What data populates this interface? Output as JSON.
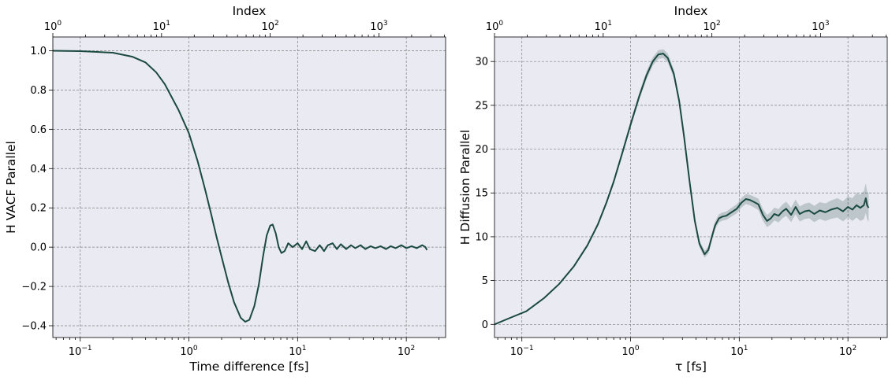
{
  "chart_data": [
    {
      "type": "line",
      "xscale": "log",
      "xlim": [
        0.056,
        230
      ],
      "ylim": [
        -0.46,
        1.07
      ],
      "xlabel": "Time difference [fs]",
      "ylabel": "H VACF Parallel",
      "top_xlabel": "Index",
      "top_xlim": [
        1,
        4107
      ],
      "grid": true,
      "x_ticks": [
        0.1,
        1,
        10,
        100
      ],
      "x_tick_labels": [
        [
          "10",
          "−1"
        ],
        [
          "10",
          "0"
        ],
        [
          "10",
          "1"
        ],
        [
          "10",
          "2"
        ]
      ],
      "top_ticks": [
        1,
        10,
        100,
        1000
      ],
      "top_tick_labels": [
        [
          "10",
          "0"
        ],
        [
          "10",
          "1"
        ],
        [
          "10",
          "2"
        ],
        [
          "10",
          "3"
        ]
      ],
      "y_ticks": [
        -0.4,
        -0.2,
        0.0,
        0.2,
        0.4,
        0.6,
        0.8,
        1.0
      ],
      "y_tick_labels": [
        "−0.4",
        "−0.2",
        "0.0",
        "0.2",
        "0.4",
        "0.6",
        "0.8",
        "1.0"
      ],
      "series": [
        {
          "x": [
            0.056,
            0.1,
            0.2,
            0.3,
            0.4,
            0.5,
            0.6,
            0.7,
            0.8,
            1.0,
            1.2,
            1.4,
            1.6,
            1.8,
            2.0,
            2.3,
            2.6,
            3.0,
            3.3,
            3.6,
            4.0,
            4.4,
            4.8,
            5.2,
            5.6,
            5.9,
            6.3,
            6.7,
            7.1,
            7.6,
            8.2,
            9.0,
            10.0,
            11.0,
            12.0,
            13.0,
            14.5,
            16.0,
            17.5,
            19.0,
            21.0,
            23.0,
            25.0,
            28.0,
            31.0,
            34.0,
            38.0,
            42.0,
            47.0,
            52.0,
            58.0,
            65.0,
            72.0,
            80.0,
            90.0,
            100.0,
            112.0,
            125.0,
            140.0,
            150.0,
            155.0
          ],
          "y": [
            1.0,
            0.998,
            0.99,
            0.97,
            0.94,
            0.89,
            0.83,
            0.76,
            0.7,
            0.58,
            0.44,
            0.3,
            0.17,
            0.05,
            -0.05,
            -0.18,
            -0.28,
            -0.36,
            -0.38,
            -0.37,
            -0.3,
            -0.19,
            -0.05,
            0.06,
            0.11,
            0.115,
            0.07,
            0.0,
            -0.03,
            -0.02,
            0.02,
            0.0,
            0.02,
            -0.01,
            0.03,
            -0.01,
            -0.02,
            0.01,
            -0.02,
            0.01,
            0.02,
            -0.01,
            0.015,
            -0.01,
            0.01,
            -0.005,
            0.01,
            -0.01,
            0.005,
            -0.005,
            0.005,
            -0.01,
            0.005,
            -0.005,
            0.01,
            -0.005,
            0.005,
            -0.005,
            0.01,
            0.0,
            -0.015
          ]
        }
      ]
    },
    {
      "type": "line",
      "xscale": "log",
      "xlim": [
        0.056,
        230
      ],
      "ylim": [
        -1.5,
        32.8
      ],
      "xlabel": "τ [fs]",
      "ylabel": "H Diffusion Parallel",
      "top_xlabel": "Index",
      "top_xlim": [
        1,
        4107
      ],
      "grid": true,
      "x_ticks": [
        0.1,
        1,
        10,
        100
      ],
      "x_tick_labels": [
        [
          "10",
          "−1"
        ],
        [
          "10",
          "0"
        ],
        [
          "10",
          "1"
        ],
        [
          "10",
          "2"
        ]
      ],
      "top_ticks": [
        1,
        10,
        100,
        1000
      ],
      "top_tick_labels": [
        [
          "10",
          "0"
        ],
        [
          "10",
          "1"
        ],
        [
          "10",
          "2"
        ],
        [
          "10",
          "3"
        ]
      ],
      "y_ticks": [
        0,
        5,
        10,
        15,
        20,
        25,
        30
      ],
      "y_tick_labels": [
        "0",
        "5",
        "10",
        "15",
        "20",
        "25",
        "30"
      ],
      "series": [
        {
          "x": [
            0.056,
            0.08,
            0.11,
            0.16,
            0.22,
            0.3,
            0.4,
            0.5,
            0.6,
            0.7,
            0.85,
            1.0,
            1.2,
            1.4,
            1.6,
            1.8,
            2.0,
            2.2,
            2.5,
            2.8,
            3.1,
            3.5,
            3.9,
            4.3,
            4.8,
            5.2,
            5.6,
            6.0,
            6.5,
            7.0,
            7.6,
            8.5,
            9.5,
            10.5,
            11.5,
            12.5,
            13.5,
            15.0,
            16.5,
            18.0,
            19.5,
            21.0,
            23.0,
            25.0,
            27.0,
            30.0,
            33.0,
            36.0,
            40.0,
            44.0,
            49.0,
            55.0,
            62.0,
            70.0,
            80.0,
            90.0,
            100.0,
            110.0,
            120.0,
            130.0,
            140.0,
            146.0,
            150.0,
            155.0
          ],
          "y": [
            0.0,
            0.8,
            1.5,
            3.0,
            4.6,
            6.6,
            9.0,
            11.4,
            13.9,
            16.3,
            19.8,
            22.8,
            26.0,
            28.4,
            30.0,
            30.8,
            30.9,
            30.4,
            28.6,
            25.5,
            21.5,
            16.2,
            11.8,
            9.2,
            8.0,
            8.5,
            10.0,
            11.3,
            12.1,
            12.3,
            12.4,
            12.8,
            13.2,
            13.9,
            14.3,
            14.2,
            14.0,
            13.7,
            12.5,
            11.8,
            12.1,
            12.6,
            12.4,
            12.9,
            13.2,
            12.5,
            13.4,
            12.6,
            12.9,
            13.0,
            12.6,
            13.0,
            12.8,
            13.1,
            13.3,
            12.9,
            13.4,
            13.1,
            13.6,
            13.3,
            13.6,
            14.4,
            13.6,
            13.3
          ],
          "err": [
            0.0,
            0.02,
            0.04,
            0.07,
            0.1,
            0.14,
            0.18,
            0.22,
            0.26,
            0.3,
            0.34,
            0.38,
            0.42,
            0.46,
            0.48,
            0.5,
            0.5,
            0.5,
            0.48,
            0.45,
            0.42,
            0.4,
            0.4,
            0.4,
            0.4,
            0.42,
            0.44,
            0.45,
            0.46,
            0.47,
            0.48,
            0.5,
            0.52,
            0.55,
            0.57,
            0.6,
            0.62,
            0.65,
            0.67,
            0.7,
            0.72,
            0.74,
            0.76,
            0.78,
            0.8,
            0.82,
            0.84,
            0.86,
            0.88,
            0.9,
            0.93,
            0.96,
            1.0,
            1.05,
            1.1,
            1.15,
            1.2,
            1.3,
            1.4,
            1.5,
            1.6,
            1.7,
            1.6,
            1.6
          ]
        }
      ]
    }
  ]
}
